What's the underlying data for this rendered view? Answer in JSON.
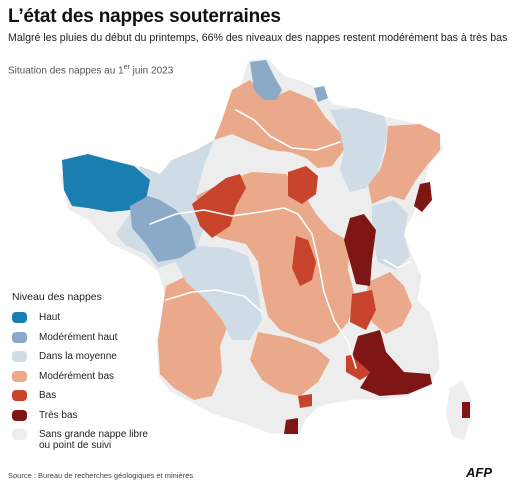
{
  "title": "L’état des nappes souterraines",
  "subtitle": "Malgré les pluies du début du printemps, 66% des niveaux des nappes restent modérément bas à très bas",
  "date_label": {
    "prefix": "Situation des nappes au 1",
    "sup": "er",
    "suffix": " juin 2023"
  },
  "legend": {
    "title": "Niveau des nappes",
    "items": [
      {
        "label": "Haut",
        "color": "#1a7fb0"
      },
      {
        "label": "Modérément haut",
        "color": "#8aaac8"
      },
      {
        "label": "Dans la moyenne",
        "color": "#cfdce6"
      },
      {
        "label": "Modérément bas",
        "color": "#eaa98a"
      },
      {
        "label": "Bas",
        "color": "#c8432b"
      },
      {
        "label": "Très bas",
        "color": "#7d1614"
      },
      {
        "label": "Sans grande nappe libre\nou point de suivi",
        "color": "#ededed"
      }
    ]
  },
  "source": "Source : Bureau de recherches géologiques et minières",
  "logo": "AFP"
}
